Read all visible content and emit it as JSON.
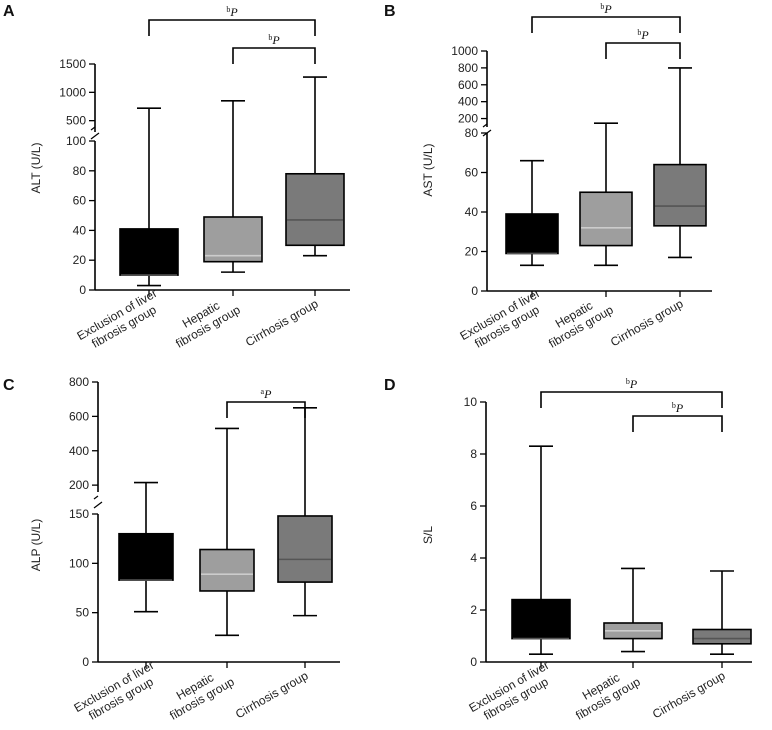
{
  "colors": {
    "group1": "#000000",
    "group2": "#9e9e9e",
    "group3": "#7a7a7a",
    "median_dark": "#555555",
    "median_light": "#cccccc"
  },
  "chart_data": [
    {
      "type": "boxplot",
      "panel": "A",
      "ylabel": "ALT (U/L)",
      "categories": [
        "Exclusion of liver fibrosis group",
        "Hepatic fibrosis group",
        "Cirrhosis group"
      ],
      "category_lines": [
        [
          "Exclusion of liver",
          "fibrosis group"
        ],
        [
          "Hepatic",
          "fibrosis group"
        ],
        [
          "Cirrhosis group"
        ]
      ],
      "lower_ylim": [
        0,
        100
      ],
      "lower_ticks": [
        "0",
        "20",
        "40",
        "60",
        "80",
        "100"
      ],
      "upper_ylim": [
        300,
        1500
      ],
      "upper_ticks": [
        "500",
        "1000",
        "1500"
      ],
      "boxes": [
        {
          "min": 3,
          "q1": 10,
          "median": 10,
          "q3": 41,
          "max": 720
        },
        {
          "min": 12,
          "q1": 19,
          "median": 23,
          "q3": 49,
          "max": 850
        },
        {
          "min": 23,
          "q1": 30,
          "median": 47,
          "q3": 78,
          "max": 1270
        }
      ],
      "significance": [
        {
          "from": 0,
          "to": 2,
          "sup": "b",
          "label": "P"
        },
        {
          "from": 1,
          "to": 2,
          "sup": "b",
          "label": "P"
        }
      ]
    },
    {
      "type": "boxplot",
      "panel": "B",
      "ylabel": "AST (U/L)",
      "categories": [
        "Exclusion of liver fibrosis group",
        "Hepatic fibrosis group",
        "Cirrhosis group"
      ],
      "category_lines": [
        [
          "Exclusion of liver",
          "fibrosis group"
        ],
        [
          "Hepatic",
          "fibrosis group"
        ],
        [
          "Cirrhosis group"
        ]
      ],
      "lower_ylim": [
        0,
        80
      ],
      "lower_ticks": [
        "0",
        "20",
        "40",
        "60",
        "80"
      ],
      "upper_ylim": [
        100,
        1000
      ],
      "upper_ticks": [
        "200",
        "400",
        "600",
        "800",
        "1000"
      ],
      "boxes": [
        {
          "min": 13,
          "q1": 19,
          "median": 19,
          "q3": 39,
          "max": 66
        },
        {
          "min": 13,
          "q1": 23,
          "median": 32,
          "q3": 50,
          "max": 145
        },
        {
          "min": 17,
          "q1": 33,
          "median": 43,
          "q3": 64,
          "max": 800
        }
      ],
      "significance": [
        {
          "from": 0,
          "to": 2,
          "sup": "b",
          "label": "P"
        },
        {
          "from": 1,
          "to": 2,
          "sup": "b",
          "label": "P"
        }
      ]
    },
    {
      "type": "boxplot",
      "panel": "C",
      "ylabel": "ALP (U/L)",
      "categories": [
        "Exclusion of liver fibrosis group",
        "Hepatic fibrosis group",
        "Cirrhosis group"
      ],
      "category_lines": [
        [
          "Exclusion of liver",
          "fibrosis group"
        ],
        [
          "Hepatic",
          "fibrosis group"
        ],
        [
          "Cirrhosis group"
        ]
      ],
      "lower_ylim": [
        0,
        150
      ],
      "lower_ticks": [
        "0",
        "50",
        "100",
        "150"
      ],
      "upper_ylim": [
        160,
        800
      ],
      "upper_ticks": [
        "200",
        "400",
        "600",
        "800"
      ],
      "boxes": [
        {
          "min": 51,
          "q1": 83,
          "median": 83,
          "q3": 130,
          "max": 215
        },
        {
          "min": 27,
          "q1": 72,
          "median": 89,
          "q3": 114,
          "max": 530
        },
        {
          "min": 47,
          "q1": 81,
          "median": 104,
          "q3": 148,
          "max": 650
        }
      ],
      "significance": [
        {
          "from": 1,
          "to": 2,
          "sup": "a",
          "label": "P"
        }
      ]
    },
    {
      "type": "boxplot",
      "panel": "D",
      "ylabel": "S/L",
      "categories": [
        "Exclusion of liver fibrosis group",
        "Hepatic fibrosis group",
        "Cirrhosis group"
      ],
      "category_lines": [
        [
          "Exclusion of liver",
          "fibrosis group"
        ],
        [
          "Hepatic",
          "fibrosis group"
        ],
        [
          "Cirrhosis group"
        ]
      ],
      "ylim": [
        0,
        10
      ],
      "ticks": [
        "0",
        "2",
        "4",
        "6",
        "8",
        "10"
      ],
      "boxes": [
        {
          "min": 0.3,
          "q1": 0.9,
          "median": 0.9,
          "q3": 2.4,
          "max": 8.3
        },
        {
          "min": 0.4,
          "q1": 0.9,
          "median": 1.2,
          "q3": 1.5,
          "max": 3.6
        },
        {
          "min": 0.3,
          "q1": 0.7,
          "median": 0.9,
          "q3": 1.25,
          "max": 3.5
        }
      ],
      "significance": [
        {
          "from": 0,
          "to": 2,
          "sup": "b",
          "label": "P"
        },
        {
          "from": 1,
          "to": 2,
          "sup": "b",
          "label": "P"
        }
      ]
    }
  ]
}
